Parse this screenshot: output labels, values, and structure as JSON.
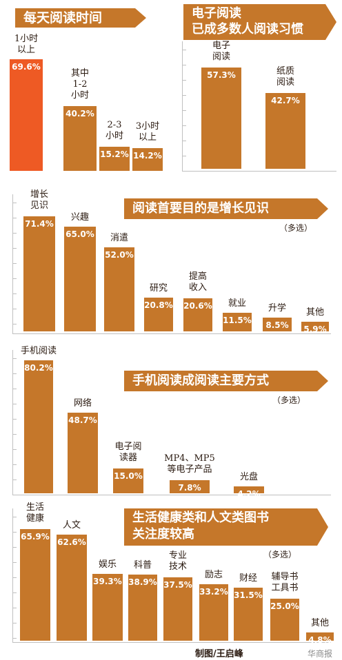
{
  "chart_data": [
    {
      "type": "bar",
      "title": "每天阅读时间",
      "categories": [
        "1小时\n以上",
        "其中\n1-2\n小时",
        "2-3\n小时",
        "3小时\n以上"
      ],
      "values": [
        69.6,
        40.2,
        15.2,
        14.2
      ],
      "value_labels": [
        "69.6%",
        "40.2%",
        "15.2%",
        "14.2%"
      ],
      "ylim": [
        0,
        70
      ],
      "highlight_index": 0,
      "colors": {
        "bar": "#c5772a",
        "highlight": "#ee5a24",
        "banner": "#c5772a"
      }
    },
    {
      "type": "bar",
      "title": "电子阅读\n已成多数人阅读习惯",
      "categories": [
        "电子\n阅读",
        "纸质\n阅读"
      ],
      "values": [
        57.3,
        42.7
      ],
      "value_labels": [
        "57.3%",
        "42.7%"
      ],
      "ylim": [
        0,
        70
      ]
    },
    {
      "type": "bar",
      "title": "阅读首要目的是增长见识",
      "note": "（多选）",
      "categories": [
        "增长\n见识",
        "兴趣",
        "消遣",
        "研究",
        "提高\n收入",
        "就业",
        "升学",
        "其他"
      ],
      "values": [
        71.4,
        65.0,
        52.0,
        20.8,
        20.6,
        11.5,
        8.5,
        5.9
      ],
      "value_labels": [
        "71.4%",
        "65.0%",
        "52.0%",
        "20.8%",
        "20.6%",
        "11.5%",
        "8.5%",
        "5.9%"
      ],
      "ylim": [
        0,
        75
      ]
    },
    {
      "type": "bar",
      "title": "手机阅读成阅读主要方式",
      "note": "（多选）",
      "categories": [
        "手机阅读",
        "网络",
        "电子阅\n读器",
        "MP4、MP5\n等电子产品",
        "光盘"
      ],
      "values": [
        80.2,
        48.7,
        15.0,
        7.8,
        4.2
      ],
      "value_labels": [
        "80.2%",
        "48.7%",
        "15.0%",
        "7.8%",
        "4.2%"
      ],
      "ylim": [
        0,
        85
      ]
    },
    {
      "type": "bar",
      "title": "生活健康类和人文类图书\n关注度较高",
      "note": "（多选）",
      "categories": [
        "生活\n健康",
        "人文",
        "娱乐",
        "科普",
        "专业\n技术",
        "励志",
        "财经",
        "辅导书\n工具书",
        "其他"
      ],
      "values": [
        65.9,
        62.6,
        39.3,
        38.9,
        37.5,
        33.2,
        31.5,
        25.0,
        4.8
      ],
      "value_labels": [
        "65.9%",
        "62.6%",
        "39.3%",
        "38.9%",
        "37.5%",
        "33.2%",
        "31.5%",
        "25.0%",
        "4.8%"
      ],
      "ylim": [
        0,
        70
      ]
    }
  ],
  "credit": "制图/王启峰",
  "watermark": "华商报"
}
